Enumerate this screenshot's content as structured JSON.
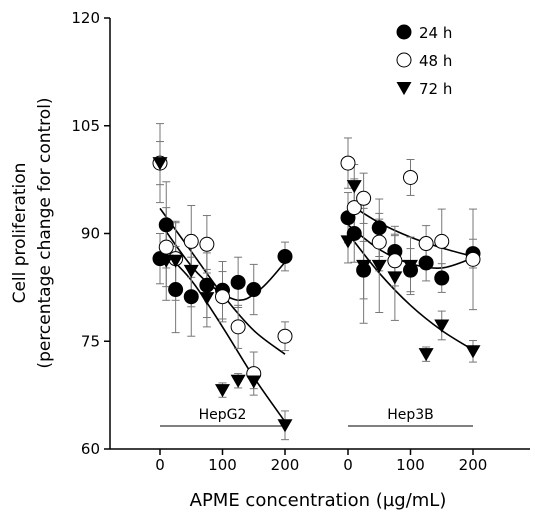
{
  "chart_data": {
    "type": "scatter",
    "xlabel": "APME concentration (µg/mL)",
    "ylabel_line1": "Cell proliferation",
    "ylabel_line2": "(percentage change for control)",
    "ylim": [
      60,
      120
    ],
    "yticks": [
      60,
      75,
      90,
      105,
      120
    ],
    "xticks": [
      0,
      100,
      200
    ],
    "grid": false,
    "legend": {
      "position": "top-right",
      "entries": [
        {
          "label": "24 h",
          "marker": "filled-circle"
        },
        {
          "label": "48 h",
          "marker": "open-circle"
        },
        {
          "label": "72 h",
          "marker": "filled-triangle-down"
        }
      ]
    },
    "panels": [
      {
        "label": "HepG2",
        "series": [
          {
            "name": "24 h",
            "x": [
              0,
              10,
              25,
              50,
              75,
              100,
              125,
              150,
              200
            ],
            "y": [
              86.5,
              91.2,
              82.2,
              81.2,
              82.8,
              82.1,
              83.2,
              82.2,
              86.8
            ],
            "err": [
              3.5,
              6.0,
              6.0,
              5.5,
              4.5,
              4.0,
              3.5,
              3.5,
              2.0
            ],
            "fit": [
              [
                0,
                91.5
              ],
              [
                60,
                84.5
              ],
              [
                120,
                80.8
              ],
              [
                160,
                82.2
              ],
              [
                200,
                86.0
              ]
            ]
          },
          {
            "name": "48 h",
            "x": [
              0,
              10,
              25,
              50,
              75,
              100,
              125,
              150,
              200
            ],
            "y": [
              99.8,
              88.1,
              86.5,
              88.9,
              88.5,
              81.2,
              77.0,
              70.5,
              75.7
            ],
            "err": [
              5.5,
              5.5,
              5.0,
              5.0,
              4.0,
              3.5,
              3.0,
              3.0,
              2.0
            ],
            "fit": [
              [
                0,
                93.5
              ],
              [
                50,
                87.5
              ],
              [
                100,
                81.5
              ],
              [
                150,
                76.5
              ],
              [
                200,
                73.2
              ]
            ]
          },
          {
            "name": "72 h",
            "x": [
              0,
              10,
              25,
              50,
              75,
              100,
              125,
              150,
              200
            ],
            "y": [
              99.8,
              86.2,
              86.2,
              84.8,
              81.0,
              68.2,
              69.5,
              69.4,
              63.3
            ],
            "err": [
              3.0,
              5.5,
              5.5,
              5.0,
              4.0,
              1.0,
              1.0,
              1.0,
              2.0
            ],
            "fit": [
              [
                0,
                88.0
              ],
              [
                50,
                83.5
              ],
              [
                100,
                77.0
              ],
              [
                150,
                70.0
              ],
              [
                200,
                63.8
              ]
            ]
          }
        ]
      },
      {
        "label": "Hep3B",
        "series": [
          {
            "name": "24 h",
            "x": [
              0,
              10,
              25,
              50,
              75,
              100,
              125,
              150,
              200
            ],
            "y": [
              92.2,
              90.0,
              84.9,
              90.8,
              87.5,
              84.9,
              85.9,
              83.8,
              87.2
            ],
            "err": [
              3.5,
              4.0,
              4.0,
              4.0,
              3.5,
              3.0,
              2.5,
              2.0,
              2.0
            ],
            "fit": [
              [
                0,
                91.2
              ],
              [
                50,
                87.8
              ],
              [
                100,
                85.8
              ],
              [
                150,
                85.2
              ],
              [
                200,
                86.6
              ]
            ]
          },
          {
            "name": "48 h",
            "x": [
              0,
              10,
              25,
              50,
              75,
              100,
              125,
              150,
              200
            ],
            "y": [
              99.8,
              93.6,
              94.9,
              88.8,
              86.2,
              97.8,
              88.6,
              88.9,
              86.4
            ],
            "err": [
              3.5,
              4.0,
              3.5,
              4.0,
              3.5,
              2.5,
              2.5,
              4.5,
              7.0
            ],
            "fit": [
              [
                0,
                94.2
              ],
              [
                50,
                91.5
              ],
              [
                100,
                89.5
              ],
              [
                150,
                88.0
              ],
              [
                200,
                86.8
              ]
            ]
          },
          {
            "name": "72 h",
            "x": [
              0,
              10,
              25,
              50,
              75,
              100,
              125,
              150,
              200
            ],
            "y": [
              88.9,
              96.6,
              85.5,
              85.5,
              83.9,
              85.5,
              73.2,
              77.2,
              73.6
            ],
            "err": [
              3.0,
              3.0,
              8.0,
              6.5,
              6.0,
              4.0,
              1.0,
              2.0,
              1.5
            ],
            "fit": [
              [
                0,
                90.0
              ],
              [
                50,
                84.5
              ],
              [
                100,
                80.0
              ],
              [
                150,
                76.5
              ],
              [
                200,
                73.8
              ]
            ]
          }
        ]
      }
    ]
  }
}
